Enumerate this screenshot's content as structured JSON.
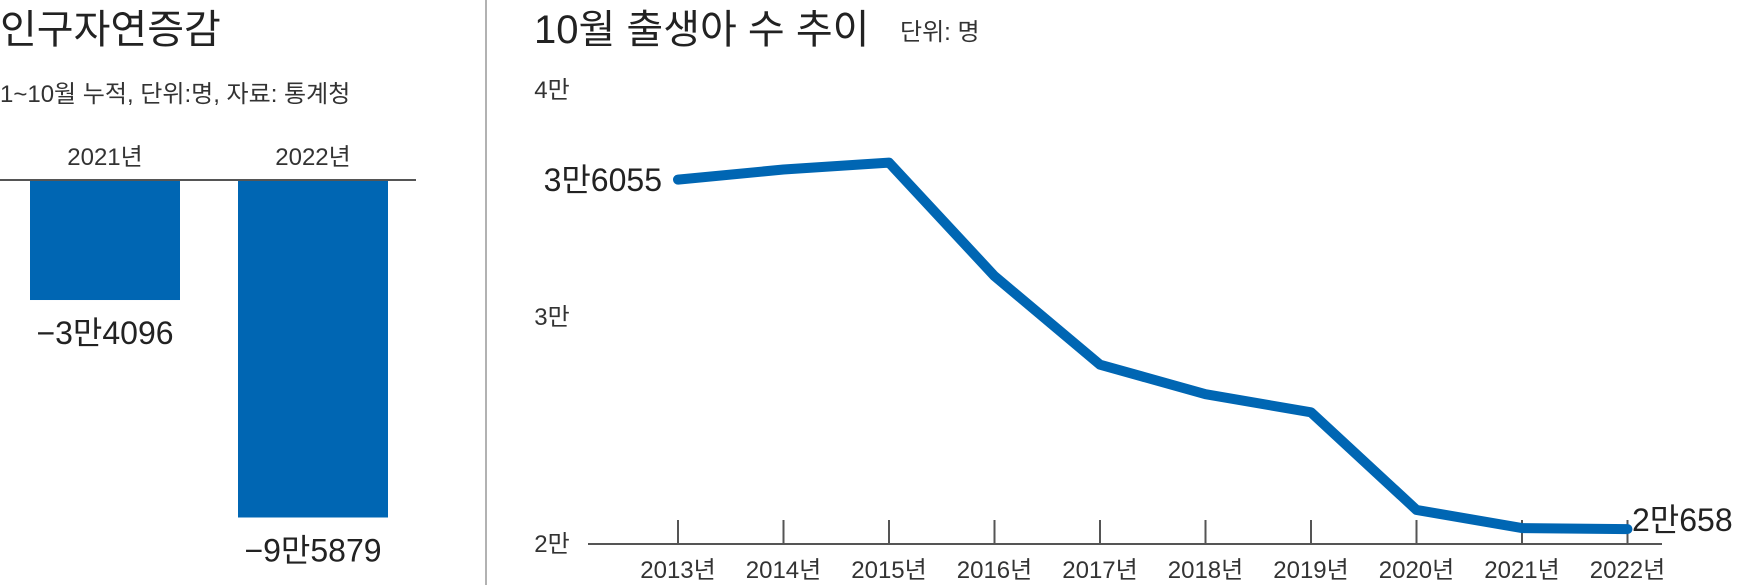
{
  "chart_data": [
    {
      "type": "bar",
      "title": "인구자연증감",
      "subtitle": "1~10월 누적, 단위:명, 자료: 통계청",
      "categories": [
        "2021년",
        "2022년"
      ],
      "values": [
        -34096,
        -95879
      ],
      "value_labels": [
        "−3만4096",
        "−9만5879"
      ],
      "ylim": [
        -100000,
        0
      ],
      "color": "#0066b3"
    },
    {
      "type": "line",
      "title": "10월 출생아 수 추이",
      "unit": "단위: 명",
      "x": [
        "2013년",
        "2014년",
        "2015년",
        "2016년",
        "2017년",
        "2018년",
        "2019년",
        "2020년",
        "2021년",
        "2022년"
      ],
      "series": [
        {
          "values": [
            36055,
            36500,
            36800,
            31800,
            27900,
            26600,
            25800,
            21500,
            20700,
            20658
          ]
        }
      ],
      "y_ticks": [
        {
          "value": 40000,
          "label": "4만"
        },
        {
          "value": 30000,
          "label": "3만"
        },
        {
          "value": 20000,
          "label": "2만"
        }
      ],
      "start_label": "3만6055",
      "end_label": "2만658",
      "ylim": [
        20000,
        40000
      ],
      "color": "#0066b3"
    }
  ]
}
